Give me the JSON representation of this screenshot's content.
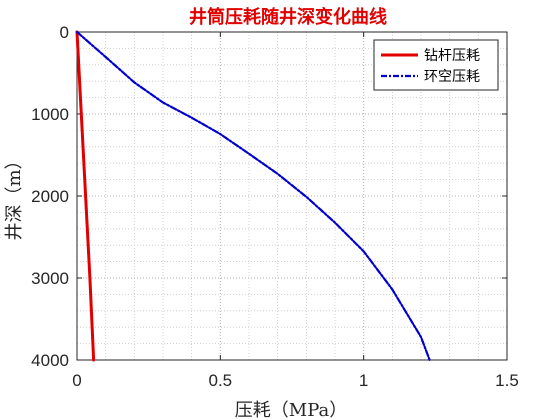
{
  "chart_data": {
    "type": "line",
    "title": "井筒压耗随井深变化曲线",
    "xlabel": "压耗（MPa）",
    "ylabel": "井深（m）",
    "xlim": [
      0,
      1.5
    ],
    "ylim": [
      0,
      4000
    ],
    "y_reversed": true,
    "x_ticks": [
      "0",
      "0.5",
      "1",
      "1.5"
    ],
    "y_ticks": [
      "0",
      "1000",
      "2000",
      "3000",
      "4000"
    ],
    "grid": "major and minor, dotted",
    "legend_position": "top-right",
    "series": [
      {
        "name": "钻杆压耗",
        "color": "#e00000",
        "style": "solid",
        "points": [
          {
            "x": 0,
            "y": 0
          },
          {
            "x": 0.015,
            "y": 1000
          },
          {
            "x": 0.03,
            "y": 2000
          },
          {
            "x": 0.045,
            "y": 3000
          },
          {
            "x": 0.058,
            "y": 4000
          }
        ]
      },
      {
        "name": "环空压耗",
        "color": "#0000cc",
        "style": "dash-dot",
        "points": [
          {
            "x": 0,
            "y": 0
          },
          {
            "x": 0.1,
            "y": 305
          },
          {
            "x": 0.2,
            "y": 615
          },
          {
            "x": 0.3,
            "y": 860
          },
          {
            "x": 0.4,
            "y": 1045
          },
          {
            "x": 0.5,
            "y": 1245
          },
          {
            "x": 0.6,
            "y": 1485
          },
          {
            "x": 0.7,
            "y": 1730
          },
          {
            "x": 0.8,
            "y": 2010
          },
          {
            "x": 0.9,
            "y": 2325
          },
          {
            "x": 1.0,
            "y": 2675
          },
          {
            "x": 1.1,
            "y": 3140
          },
          {
            "x": 1.2,
            "y": 3720
          },
          {
            "x": 1.23,
            "y": 4000
          }
        ]
      }
    ]
  }
}
